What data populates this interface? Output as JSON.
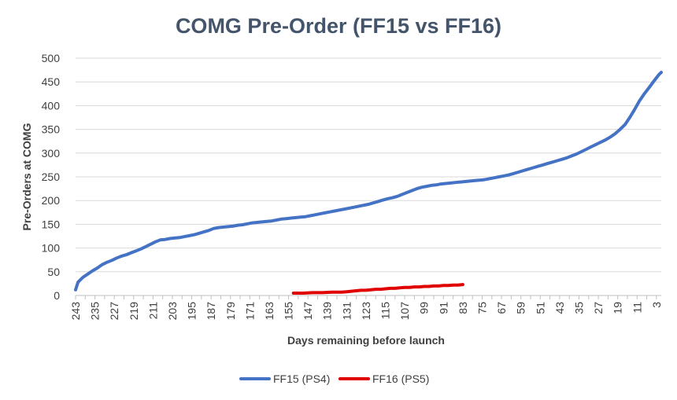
{
  "chart_data": {
    "type": "line",
    "title": "COMG Pre-Order (FF15 vs FF16)",
    "xlabel": "Days remaining before launch",
    "ylabel": "Pre-Orders at COMG",
    "xlim": [
      243,
      1
    ],
    "ylim": [
      0,
      500
    ],
    "y_ticks": [
      0,
      50,
      100,
      150,
      200,
      250,
      300,
      350,
      400,
      450,
      500
    ],
    "x_ticks": [
      243,
      235,
      227,
      219,
      211,
      203,
      195,
      187,
      179,
      171,
      163,
      155,
      147,
      139,
      131,
      123,
      115,
      107,
      99,
      91,
      83,
      75,
      67,
      59,
      51,
      43,
      35,
      27,
      19,
      11,
      3
    ],
    "grid": "horizontal",
    "legend_position": "bottom",
    "series": [
      {
        "name": "FF15 (PS4)",
        "color": "#4472C4",
        "x": [
          243,
          242,
          240,
          238,
          236,
          234,
          232,
          230,
          228,
          226,
          224,
          222,
          220,
          218,
          216,
          214,
          212,
          210,
          208,
          206,
          204,
          202,
          200,
          198,
          196,
          194,
          192,
          190,
          188,
          186,
          184,
          182,
          180,
          178,
          176,
          174,
          172,
          170,
          168,
          166,
          164,
          162,
          160,
          158,
          156,
          154,
          152,
          150,
          148,
          146,
          144,
          142,
          140,
          138,
          136,
          134,
          132,
          130,
          128,
          126,
          124,
          122,
          120,
          118,
          116,
          114,
          112,
          110,
          108,
          106,
          104,
          102,
          100,
          98,
          96,
          94,
          92,
          90,
          88,
          86,
          84,
          82,
          80,
          78,
          76,
          74,
          72,
          70,
          68,
          66,
          64,
          62,
          60,
          58,
          56,
          54,
          52,
          50,
          48,
          46,
          44,
          42,
          40,
          38,
          36,
          34,
          32,
          30,
          28,
          26,
          24,
          22,
          20,
          18,
          16,
          14,
          12,
          10,
          8,
          6,
          4,
          2,
          1
        ],
        "values": [
          12,
          28,
          38,
          45,
          52,
          58,
          65,
          70,
          74,
          79,
          83,
          86,
          90,
          94,
          98,
          103,
          108,
          113,
          117,
          118,
          120,
          121,
          122,
          124,
          126,
          128,
          131,
          134,
          137,
          141,
          143,
          144,
          145,
          146,
          148,
          149,
          151,
          153,
          154,
          155,
          156,
          157,
          159,
          161,
          162,
          163,
          164,
          165,
          166,
          168,
          170,
          172,
          174,
          176,
          178,
          180,
          182,
          184,
          186,
          188,
          190,
          192,
          195,
          198,
          201,
          204,
          206,
          209,
          213,
          217,
          221,
          225,
          228,
          230,
          232,
          233,
          235,
          236,
          237,
          238,
          239,
          240,
          241,
          242,
          243,
          244,
          246,
          248,
          250,
          252,
          254,
          257,
          260,
          263,
          266,
          269,
          272,
          275,
          278,
          281,
          284,
          287,
          290,
          294,
          298,
          303,
          308,
          313,
          318,
          323,
          328,
          334,
          341,
          350,
          360,
          375,
          392,
          410,
          425,
          438,
          452,
          465,
          470
        ]
      },
      {
        "name": "FF16 (PS5)",
        "color": "#E00000",
        "x": [
          153,
          149,
          145,
          141,
          137,
          133,
          131,
          129,
          127,
          125,
          123,
          121,
          119,
          117,
          115,
          113,
          111,
          109,
          107,
          105,
          103,
          101,
          99,
          97,
          95,
          93,
          91,
          89,
          87,
          85,
          83
        ],
        "values": [
          5,
          5,
          6,
          6,
          7,
          7,
          8,
          9,
          10,
          11,
          11,
          12,
          13,
          13,
          14,
          15,
          15,
          16,
          17,
          17,
          18,
          18,
          19,
          19,
          20,
          20,
          21,
          21,
          22,
          22,
          23
        ]
      }
    ]
  }
}
